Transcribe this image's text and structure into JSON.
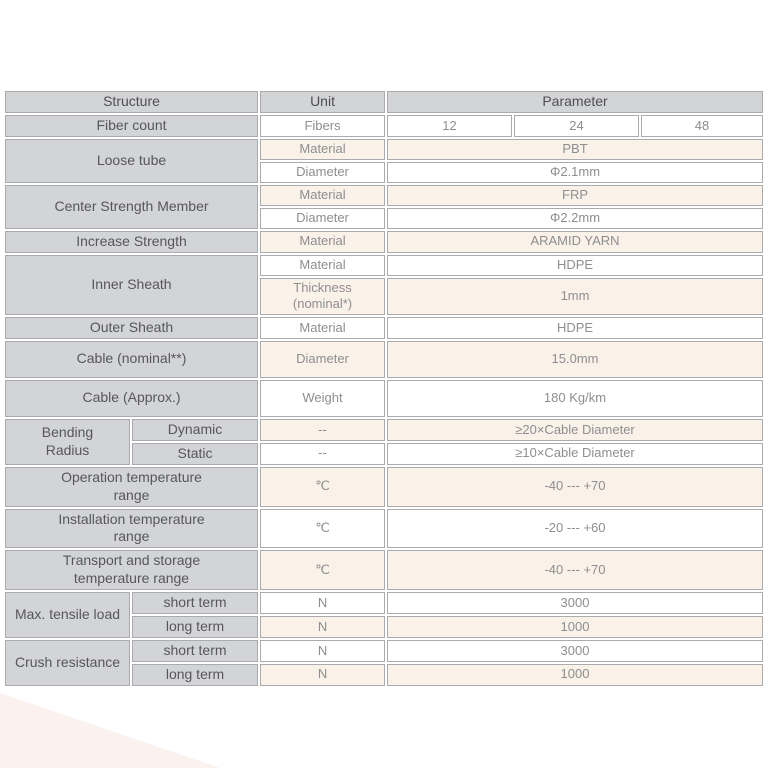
{
  "table": {
    "colors": {
      "header_bg": "#d3d4d6",
      "label_bg": "#d3d4d6",
      "cream_bg": "#faf1e8",
      "white_bg": "#ffffff",
      "border": "#aaabae",
      "header_text": "#4f4f52",
      "label_text": "#57575a",
      "value_text": "#8e8e90"
    },
    "header": {
      "structure": "Structure",
      "unit": "Unit",
      "parameter": "Parameter"
    },
    "rows": [
      {
        "tall": false,
        "cells": [
          {
            "text": "Structure",
            "name": "structure-header-cell",
            "span": 2,
            "style": "header"
          },
          {
            "text": "Unit",
            "name": "unit-header-cell",
            "span": 1,
            "style": "header"
          },
          {
            "text": "Parameter",
            "name": "parameter-header-cell",
            "span": 3,
            "style": "header"
          }
        ]
      },
      {
        "tall": false,
        "cells": [
          {
            "text": "Fiber count",
            "name": "fiber-count-label",
            "span": 2,
            "style": "label"
          },
          {
            "text": "Fibers",
            "name": "fiber-count-unit",
            "style": "white"
          },
          {
            "text": "12",
            "name": "fiber-count-value-12",
            "style": "white"
          },
          {
            "text": "24",
            "name": "fiber-count-value-24",
            "style": "white"
          },
          {
            "text": "48",
            "name": "fiber-count-value-48",
            "style": "white"
          }
        ]
      },
      {
        "tall": false,
        "cells": [
          {
            "text": "Loose tube",
            "name": "loose-tube-label",
            "span": 2,
            "rowspan": 2,
            "style": "label"
          },
          {
            "text": "Material",
            "name": "loose-tube-material-unit",
            "style": "cream"
          },
          {
            "text": "PBT",
            "name": "loose-tube-material-value",
            "span": 3,
            "style": "cream"
          }
        ]
      },
      {
        "tall": false,
        "cells": [
          {
            "text": "Diameter",
            "name": "loose-tube-diameter-unit",
            "style": "white"
          },
          {
            "text": "Φ2.1mm",
            "name": "loose-tube-diameter-value",
            "span": 3,
            "style": "white"
          }
        ]
      },
      {
        "tall": false,
        "cells": [
          {
            "text": "Center Strength Member",
            "name": "center-strength-member-label",
            "span": 2,
            "rowspan": 2,
            "style": "label"
          },
          {
            "text": "Material",
            "name": "csm-material-unit",
            "style": "cream"
          },
          {
            "text": "FRP",
            "name": "csm-material-value",
            "span": 3,
            "style": "cream"
          }
        ]
      },
      {
        "tall": false,
        "cells": [
          {
            "text": "Diameter",
            "name": "csm-diameter-unit",
            "style": "white"
          },
          {
            "text": "Φ2.2mm",
            "name": "csm-diameter-value",
            "span": 3,
            "style": "white"
          }
        ]
      },
      {
        "tall": false,
        "cells": [
          {
            "text": "Increase Strength",
            "name": "increase-strength-label",
            "span": 2,
            "style": "label"
          },
          {
            "text": "Material",
            "name": "increase-strength-unit",
            "style": "cream"
          },
          {
            "text": "ARAMID YARN",
            "name": "increase-strength-value",
            "span": 3,
            "style": "cream"
          }
        ]
      },
      {
        "tall": false,
        "cells": [
          {
            "text": "Inner Sheath",
            "name": "inner-sheath-label",
            "span": 2,
            "rowspan": 2,
            "style": "label"
          },
          {
            "text": "Material",
            "name": "inner-sheath-material-unit",
            "style": "white"
          },
          {
            "text": "HDPE",
            "name": "inner-sheath-material-value",
            "span": 3,
            "style": "white"
          }
        ]
      },
      {
        "tall": true,
        "cells": [
          {
            "text": "Thickness\n(nominal*)",
            "name": "inner-sheath-thickness-unit",
            "style": "cream"
          },
          {
            "text": "1mm",
            "name": "inner-sheath-thickness-value",
            "span": 3,
            "style": "cream"
          }
        ]
      },
      {
        "tall": false,
        "cells": [
          {
            "text": "Outer Sheath",
            "name": "outer-sheath-label",
            "span": 2,
            "style": "label"
          },
          {
            "text": "Material",
            "name": "outer-sheath-unit",
            "style": "white"
          },
          {
            "text": "HDPE",
            "name": "outer-sheath-value",
            "span": 3,
            "style": "white"
          }
        ]
      },
      {
        "tall": true,
        "cells": [
          {
            "text": "Cable (nominal**)",
            "name": "cable-nominal-label",
            "span": 2,
            "style": "label"
          },
          {
            "text": "Diameter",
            "name": "cable-nominal-unit",
            "style": "cream"
          },
          {
            "text": "15.0mm",
            "name": "cable-nominal-value",
            "span": 3,
            "style": "cream"
          }
        ]
      },
      {
        "tall": true,
        "cells": [
          {
            "text": "Cable (Approx.)",
            "name": "cable-approx-label",
            "span": 2,
            "style": "label"
          },
          {
            "text": "Weight",
            "name": "cable-approx-unit",
            "style": "white"
          },
          {
            "text": "180 Kg/km",
            "name": "cable-approx-value",
            "span": 3,
            "style": "white"
          }
        ]
      },
      {
        "tall": false,
        "cells": [
          {
            "text": "Bending\nRadius",
            "name": "bending-radius-label",
            "rowspan": 2,
            "style": "label"
          },
          {
            "text": "Dynamic",
            "name": "bending-radius-dynamic-label",
            "style": "label"
          },
          {
            "text": "--",
            "name": "bending-radius-dynamic-unit",
            "style": "cream"
          },
          {
            "text": "≥20×Cable Diameter",
            "name": "bending-radius-dynamic-value",
            "span": 3,
            "style": "cream"
          }
        ]
      },
      {
        "tall": false,
        "cells": [
          {
            "text": "Static",
            "name": "bending-radius-static-label",
            "style": "label"
          },
          {
            "text": "--",
            "name": "bending-radius-static-unit",
            "style": "white"
          },
          {
            "text": "≥10×Cable Diameter",
            "name": "bending-radius-static-value",
            "span": 3,
            "style": "white"
          }
        ]
      },
      {
        "tall": true,
        "cells": [
          {
            "text": "Operation temperature\nrange",
            "name": "operation-temp-label",
            "span": 2,
            "style": "label"
          },
          {
            "text": "℃",
            "name": "operation-temp-unit",
            "style": "cream"
          },
          {
            "text": "-40 --- +70",
            "name": "operation-temp-value",
            "span": 3,
            "style": "cream"
          }
        ]
      },
      {
        "tall": true,
        "cells": [
          {
            "text": "Installation temperature\nrange",
            "name": "installation-temp-label",
            "span": 2,
            "style": "label"
          },
          {
            "text": "℃",
            "name": "installation-temp-unit",
            "style": "white"
          },
          {
            "text": "-20 --- +60",
            "name": "installation-temp-value",
            "span": 3,
            "style": "white"
          }
        ]
      },
      {
        "tall": true,
        "cells": [
          {
            "text": "Transport and storage\ntemperature range",
            "name": "transport-storage-temp-label",
            "span": 2,
            "style": "label"
          },
          {
            "text": "℃",
            "name": "transport-storage-temp-unit",
            "style": "cream"
          },
          {
            "text": "-40 --- +70",
            "name": "transport-storage-temp-value",
            "span": 3,
            "style": "cream"
          }
        ]
      },
      {
        "tall": false,
        "cells": [
          {
            "text": "Max. tensile load",
            "name": "max-tensile-load-label",
            "rowspan": 2,
            "style": "label"
          },
          {
            "text": "short term",
            "name": "max-tensile-short-label",
            "style": "label"
          },
          {
            "text": "N",
            "name": "max-tensile-short-unit",
            "style": "white"
          },
          {
            "text": "3000",
            "name": "max-tensile-short-value",
            "span": 3,
            "style": "white"
          }
        ]
      },
      {
        "tall": false,
        "cells": [
          {
            "text": "long term",
            "name": "max-tensile-long-label",
            "style": "label"
          },
          {
            "text": "N",
            "name": "max-tensile-long-unit",
            "style": "cream"
          },
          {
            "text": "1000",
            "name": "max-tensile-long-value",
            "span": 3,
            "style": "cream"
          }
        ]
      },
      {
        "tall": false,
        "cells": [
          {
            "text": "Crush resistance",
            "name": "crush-resistance-label",
            "rowspan": 2,
            "style": "label"
          },
          {
            "text": "short term",
            "name": "crush-short-label",
            "style": "label"
          },
          {
            "text": "N",
            "name": "crush-short-unit",
            "style": "white"
          },
          {
            "text": "3000",
            "name": "crush-short-value",
            "span": 3,
            "style": "white"
          }
        ]
      },
      {
        "tall": false,
        "cells": [
          {
            "text": "long term",
            "name": "crush-long-label",
            "style": "label"
          },
          {
            "text": "N",
            "name": "crush-long-unit",
            "style": "cream"
          },
          {
            "text": "1000",
            "name": "crush-long-value",
            "span": 3,
            "style": "cream"
          }
        ]
      }
    ]
  },
  "decor": {
    "corner_shape_color": "#f9e8e2"
  }
}
